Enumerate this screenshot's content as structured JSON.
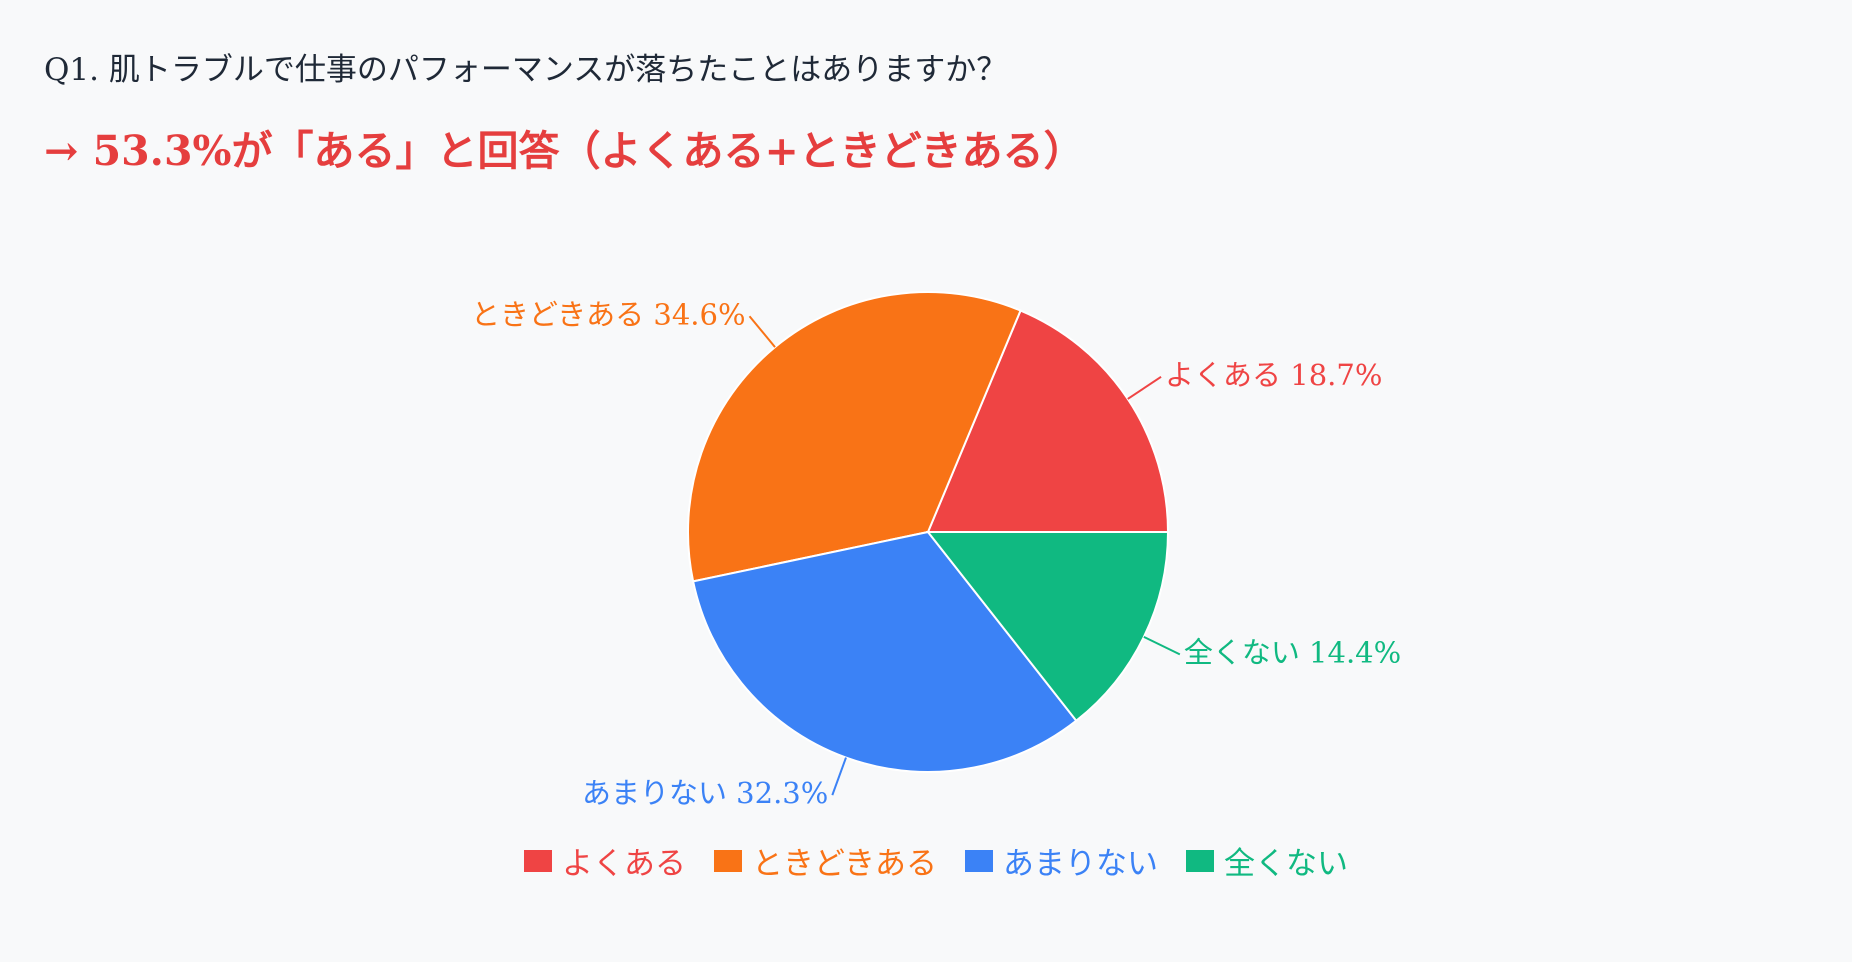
{
  "header": {
    "question": "Q1. 肌トラブルで仕事のパフォーマンスが落ちたことはありますか？",
    "headline": "→ 53.3%が「ある」と回答（よくある+ときどきある）"
  },
  "chart_data": {
    "type": "pie",
    "start": "3 o'clock, counter-clockwise",
    "slices": [
      {
        "label": "よくある",
        "value": 18.7,
        "display": "よくある 18.7%",
        "color": "#ef4444"
      },
      {
        "label": "ときどきある",
        "value": 34.6,
        "display": "ときどきある 34.6%",
        "color": "#f97316"
      },
      {
        "label": "あまりない",
        "value": 32.3,
        "display": "あまりない 32.3%",
        "color": "#3b82f6"
      },
      {
        "label": "全くない",
        "value": 14.4,
        "display": "全くない 14.4%",
        "color": "#10b981"
      }
    ],
    "legend_position": "bottom-center"
  }
}
